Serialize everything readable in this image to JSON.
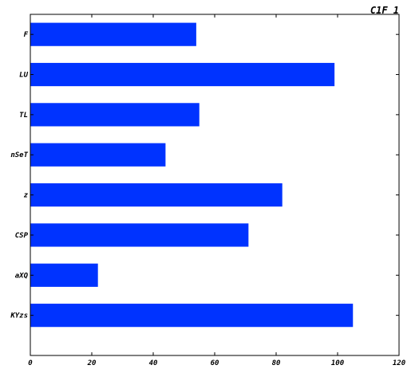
{
  "chart_data": {
    "type": "bar",
    "orientation": "horizontal",
    "title": "C1F 1",
    "xlabel": "",
    "ylabel": "",
    "categories": [
      "F",
      "LU",
      "TL",
      "nSeT",
      "z",
      "CSP",
      "aXQ",
      "KYzs"
    ],
    "values": [
      54,
      99,
      55,
      44,
      82,
      71,
      22,
      105
    ],
    "xlim": [
      0,
      120
    ],
    "xticks": [
      0,
      20,
      40,
      60,
      80,
      100,
      120
    ],
    "grid": false,
    "bar_color": "#0033ff"
  }
}
